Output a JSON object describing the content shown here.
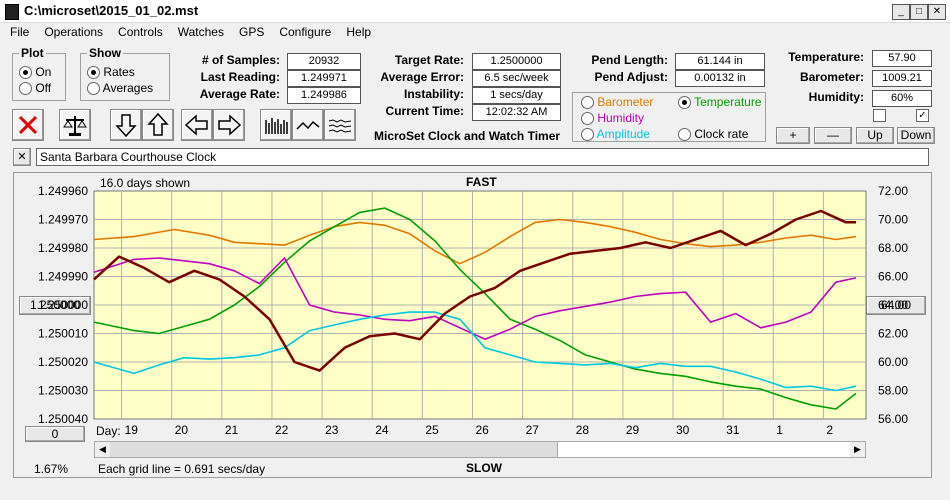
{
  "window": {
    "title": "C:\\microset\\2015_01_02.mst",
    "min": "_",
    "max": "□",
    "close": "✕"
  },
  "menu": [
    "File",
    "Operations",
    "Controls",
    "Watches",
    "GPS",
    "Configure",
    "Help"
  ],
  "plot_group": {
    "title": "Plot",
    "options": [
      "On",
      "Off"
    ],
    "selected": "On"
  },
  "show_group": {
    "title": "Show",
    "options": [
      "Rates",
      "Averages"
    ],
    "selected": "Rates"
  },
  "stats": {
    "num_samples_label": "# of Samples:",
    "num_samples": "20932",
    "last_reading_label": "Last Reading:",
    "last_reading": "1.249971",
    "average_rate_label": "Average Rate:",
    "average_rate": "1.249986",
    "target_rate_label": "Target Rate:",
    "target_rate": "1.2500000",
    "average_error_label": "Average Error:",
    "average_error": "6.5 sec/week",
    "instability_label": "Instability:",
    "instability": "1 secs/day",
    "current_time_label": "Current Time:",
    "current_time": "12:02:32 AM",
    "pend_length_label": "Pend Length:",
    "pend_length": "61.144 in",
    "pend_adjust_label": "Pend Adjust:",
    "pend_adjust": "0.00132 in",
    "temperature_label": "Temperature:",
    "temperature": "57.90",
    "barometer_label": "Barometer:",
    "barometer": "1009.21",
    "humidity_label": "Humidity:",
    "humidity": "60%"
  },
  "app_caption": "MicroSet Clock and Watch Timer",
  "series_select": [
    {
      "label": "Barometer",
      "color": "#e07800",
      "selected": false
    },
    {
      "label": "Temperature",
      "color": "#00a000",
      "selected": true
    },
    {
      "label": "Humidity",
      "color": "#c000c0",
      "selected": false
    },
    {
      "label": "Clock rate",
      "color": "#000000",
      "selected": false
    },
    {
      "label": "Amplitude",
      "color": "#00c8e0",
      "selected": false
    }
  ],
  "scale_buttons": [
    "+",
    "—",
    "Up",
    "Down"
  ],
  "checkboxes": [
    false,
    true
  ],
  "clock_name": "Santa Barbara Courthouse Clock",
  "clear_button": "✕",
  "chart_header": {
    "days_shown": "16.0 days shown",
    "fast": "FAST",
    "slow": "SLOW",
    "grid_note": "Each grid line = 0.691 secs/day",
    "percent": "1.67%"
  },
  "left_value_button": "1.250000",
  "right_value_button": "64.00",
  "bottom_left_button": "0",
  "day_label": "Day:",
  "chart_data": {
    "type": "line",
    "x_ticks": [
      "19",
      "20",
      "21",
      "22",
      "23",
      "24",
      "25",
      "26",
      "27",
      "28",
      "29",
      "30",
      "31",
      "1",
      "2"
    ],
    "y_left": {
      "ticks": [
        "1.249960",
        "1.249970",
        "1.249980",
        "1.249990",
        "1.250000",
        "1.250010",
        "1.250020",
        "1.250030",
        "1.250040"
      ],
      "range": [
        1.24996,
        1.25004
      ],
      "inverted": true
    },
    "y_right": {
      "ticks": [
        "72.00",
        "70.00",
        "68.00",
        "66.00",
        "64.00",
        "62.00",
        "60.00",
        "58.00",
        "56.00"
      ],
      "range": [
        56,
        72
      ]
    },
    "x_range": [
      18.2,
      33.6
    ],
    "series": [
      {
        "name": "Barometer",
        "color": "#e07800",
        "axis": "right",
        "x": [
          18.2,
          19,
          19.8,
          20.5,
          21,
          21.5,
          22,
          22.5,
          23,
          23.5,
          24,
          24.5,
          25,
          25.5,
          26,
          26.5,
          27,
          27.5,
          28,
          28.5,
          29,
          29.5,
          30,
          30.5,
          31,
          31.5,
          32,
          32.5,
          33,
          33.4
        ],
        "y": [
          68.6,
          68.8,
          69.3,
          68.9,
          68.4,
          68.3,
          68.2,
          68.9,
          69.5,
          69.8,
          69.6,
          69.0,
          67.8,
          66.9,
          67.7,
          68.8,
          69.8,
          70.0,
          69.8,
          69.5,
          69.1,
          68.6,
          68.3,
          68.1,
          68.2,
          68.4,
          68.7,
          68.9,
          68.6,
          68.8
        ]
      },
      {
        "name": "Temperature",
        "color": "#00a000",
        "axis": "right",
        "x": [
          18.2,
          19,
          19.5,
          20,
          20.5,
          21,
          21.5,
          22,
          22.5,
          23,
          23.5,
          24,
          24.5,
          25,
          25.5,
          26,
          26.5,
          27,
          27.5,
          28,
          28.5,
          29,
          29.5,
          30,
          30.5,
          31,
          31.5,
          32,
          32.5,
          33,
          33.4
        ],
        "y": [
          62.8,
          62.2,
          62.0,
          62.5,
          63.0,
          64.0,
          65.3,
          67.0,
          68.5,
          69.5,
          70.5,
          70.8,
          70.0,
          68.5,
          66.5,
          64.8,
          63.0,
          62.3,
          61.5,
          60.5,
          60.0,
          59.5,
          59.2,
          59.0,
          58.6,
          58.3,
          58.1,
          57.5,
          57.0,
          56.7,
          57.8
        ]
      },
      {
        "name": "Humidity",
        "color": "#c000c0",
        "axis": "right",
        "x": [
          18.2,
          19,
          19.5,
          20,
          20.5,
          21,
          21.5,
          22,
          22.5,
          23,
          23.5,
          24,
          24.5,
          25,
          25.5,
          26,
          26.5,
          27,
          27.5,
          28,
          28.5,
          29,
          29.5,
          30,
          30.5,
          31,
          31.5,
          32,
          32.5,
          33,
          33.4
        ],
        "y": [
          66.3,
          67.2,
          67.3,
          67.1,
          66.9,
          66.4,
          65.5,
          67.3,
          64.0,
          63.5,
          63.3,
          63.0,
          62.9,
          63.2,
          62.4,
          61.6,
          62.3,
          63.2,
          63.6,
          63.9,
          64.2,
          64.6,
          64.8,
          64.9,
          62.8,
          63.4,
          62.4,
          62.8,
          63.5,
          65.6,
          65.9
        ]
      },
      {
        "name": "Clock rate",
        "color": "#7a0000",
        "axis": "left",
        "x": [
          18.2,
          18.7,
          19.2,
          19.7,
          20.2,
          20.7,
          21.2,
          21.7,
          22.2,
          22.7,
          23.2,
          23.7,
          24.2,
          24.7,
          25.2,
          25.7,
          26.2,
          26.7,
          27.2,
          27.7,
          28.2,
          28.7,
          29.2,
          29.7,
          30.2,
          30.7,
          31.2,
          31.7,
          32.2,
          32.7,
          33.2,
          33.4
        ],
        "y": [
          1.249991,
          1.249983,
          1.249987,
          1.249992,
          1.249988,
          1.249991,
          1.249997,
          1.250005,
          1.25002,
          1.250023,
          1.250015,
          1.250011,
          1.25001,
          1.250012,
          1.250003,
          1.249997,
          1.249994,
          1.249988,
          1.249985,
          1.249982,
          1.249981,
          1.24998,
          1.249978,
          1.24998,
          1.249977,
          1.249974,
          1.249979,
          1.249975,
          1.24997,
          1.249967,
          1.249971,
          1.249971
        ]
      },
      {
        "name": "Amplitude",
        "color": "#00c8e0",
        "axis": "right",
        "x": [
          18.2,
          19,
          19.5,
          20,
          20.5,
          21,
          21.5,
          22,
          22.5,
          23,
          23.5,
          24,
          24.5,
          25,
          25.5,
          26,
          26.5,
          27,
          27.5,
          28,
          28.5,
          29,
          29.5,
          30,
          30.5,
          31,
          31.5,
          32,
          32.5,
          33,
          33.4
        ],
        "y": [
          60.0,
          59.2,
          59.8,
          60.3,
          60.2,
          60.3,
          60.5,
          61.0,
          62.2,
          62.6,
          63.0,
          63.3,
          63.5,
          63.5,
          63.0,
          61.0,
          60.5,
          60.0,
          59.9,
          59.8,
          59.9,
          59.6,
          59.9,
          59.7,
          59.7,
          59.3,
          58.8,
          58.2,
          58.3,
          58.0,
          58.3
        ]
      }
    ]
  }
}
